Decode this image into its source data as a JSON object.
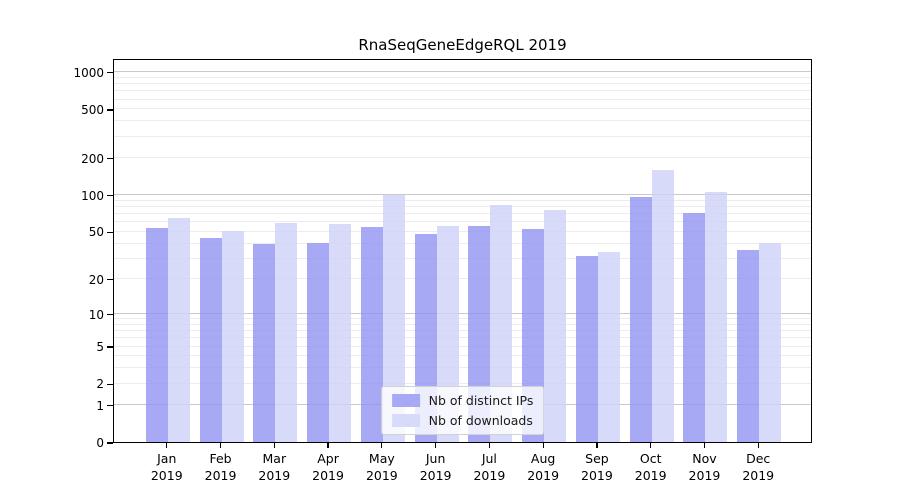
{
  "title": "RnaSeqGeneEdgeRQL 2019",
  "colors": {
    "axis": "#000000",
    "grid_major": "#c9c9c9",
    "grid_minor": "#ececec",
    "legend_border": "#d2d2d2"
  },
  "chart_data": {
    "type": "bar",
    "title": "RnaSeqGeneEdgeRQL 2019",
    "x_year": "2019",
    "categories": [
      "Jan",
      "Feb",
      "Mar",
      "Apr",
      "May",
      "Jun",
      "Jul",
      "Aug",
      "Sep",
      "Oct",
      "Nov",
      "Dec"
    ],
    "series": [
      {
        "name": "Nb of distinct IPs",
        "key": "distinct-ips",
        "color": "#a7a9f5",
        "fill": "rgba(142,145,242,0.78)",
        "values": [
          53,
          44,
          39,
          40,
          54,
          48,
          55,
          52,
          31,
          96,
          71,
          35
        ]
      },
      {
        "name": "Nb of downloads",
        "key": "downloads",
        "color": "#d8daf9",
        "fill": "rgba(207,210,249,0.82)",
        "values": [
          65,
          50,
          59,
          58,
          100,
          55,
          82,
          75,
          34,
          160,
          106,
          40
        ]
      }
    ],
    "yscale": "log1p",
    "yticks": [
      0,
      1,
      2,
      5,
      10,
      20,
      50,
      100,
      200,
      500,
      1000
    ],
    "decade_gridlines": [
      1,
      10,
      100,
      1000
    ],
    "ylim": [
      0,
      1295
    ],
    "grid": true,
    "legend_position": "lower center"
  }
}
